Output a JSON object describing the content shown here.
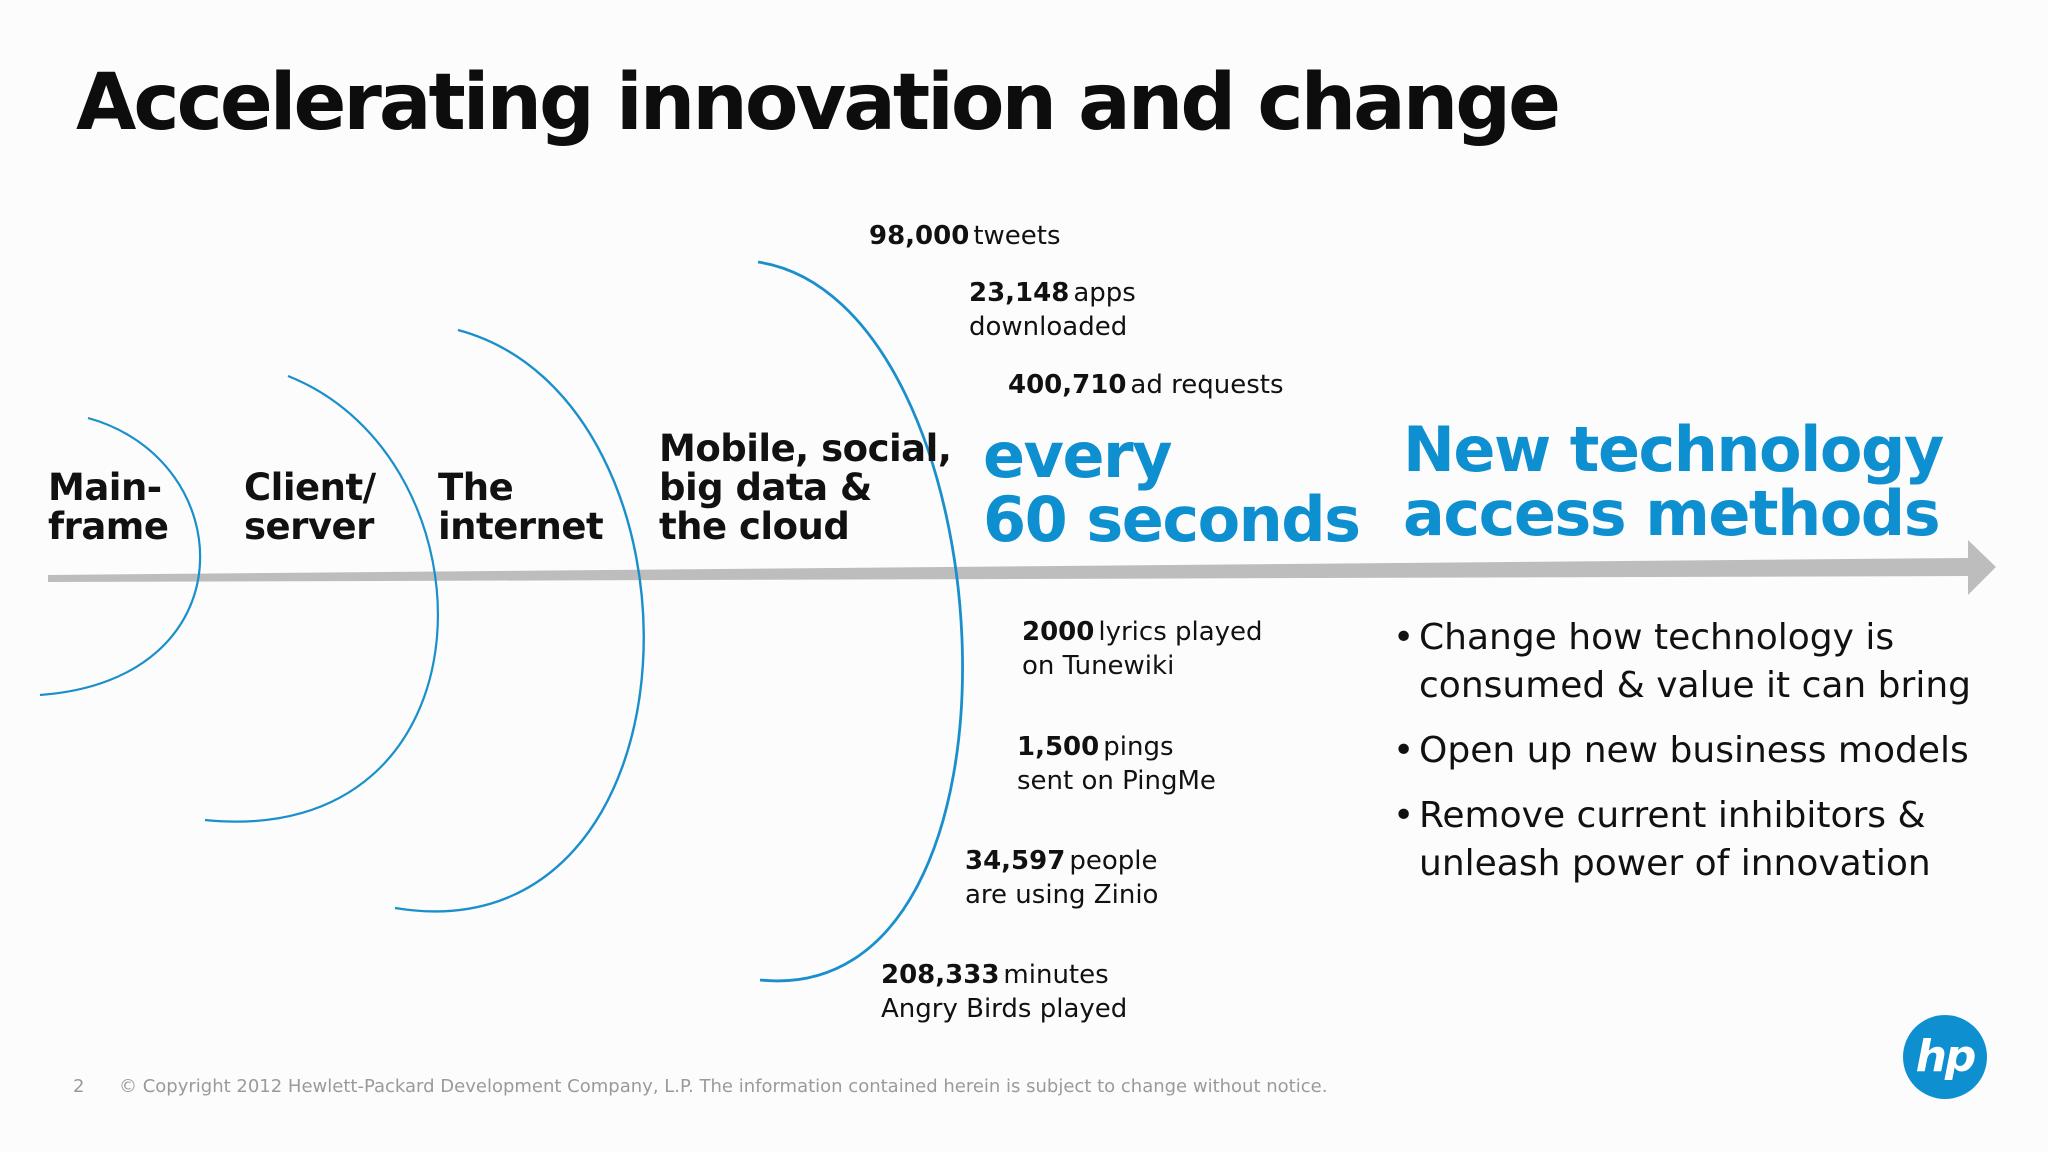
{
  "title": "Accelerating innovation and change",
  "eras": [
    {
      "label": "Main-\nframe"
    },
    {
      "label": "Client/\nserver"
    },
    {
      "label": "The\ninternet"
    },
    {
      "label": "Mobile, social,\nbig data &\nthe cloud"
    }
  ],
  "stats_top": [
    {
      "value": "98,000",
      "text": "tweets",
      "text2": ""
    },
    {
      "value": "23,148",
      "text": "apps",
      "text2": "downloaded"
    },
    {
      "value": "400,710",
      "text": "ad requests",
      "text2": ""
    }
  ],
  "stats_bottom": [
    {
      "value": "2000",
      "text": "lyrics played",
      "text2": "on Tunewiki"
    },
    {
      "value": "1,500",
      "text": "pings",
      "text2": "sent on PingMe"
    },
    {
      "value": "34,597",
      "text": "people",
      "text2": "are using Zinio"
    },
    {
      "value": "208,333",
      "text": "minutes",
      "text2": "Angry Birds played"
    }
  ],
  "every_line1": "every",
  "every_line2": "60 seconds",
  "new_tech_line1": "New technology",
  "new_tech_line2": "access methods",
  "bullets": [
    "Change how technology is consumed & value it can bring",
    "Open up new business models",
    "Remove current inhibitors & unleash power of innovation"
  ],
  "bullet_glyph": "•",
  "footer_page": "2",
  "footer_copyright": "© Copyright 2012 Hewlett-Packard Development Company, L.P.  The information contained herein is subject to change without notice.",
  "logo_text": "hp",
  "colors": {
    "accent": "#0e8fd0",
    "arrow": "#bdbdbd",
    "arc": "#1a8fcc"
  }
}
